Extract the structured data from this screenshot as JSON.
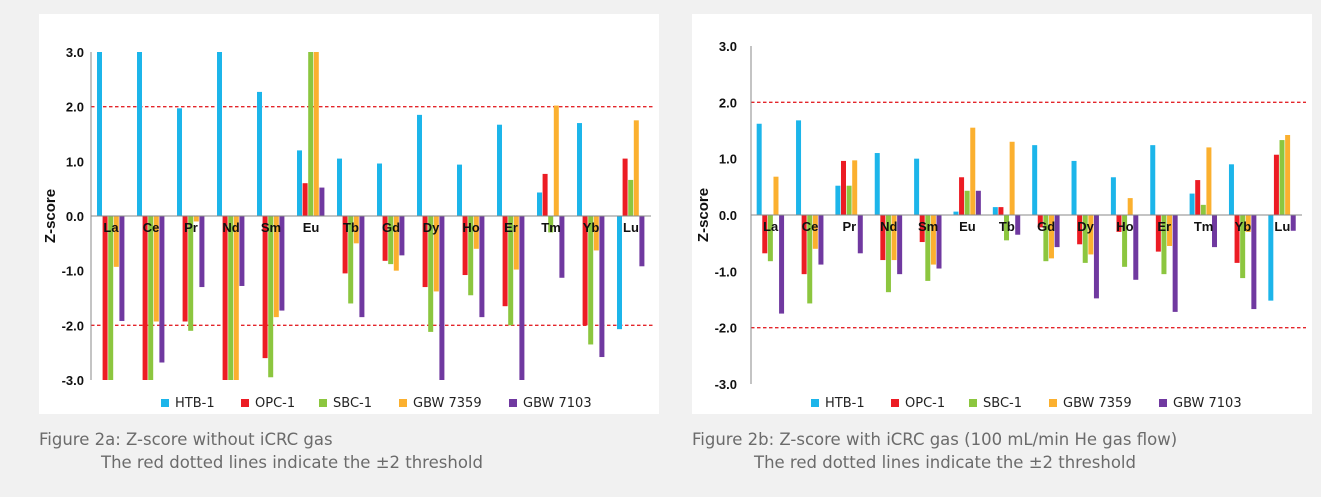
{
  "colors": {
    "HTB-1": "#1cb5ea",
    "OPC-1": "#ec1c24",
    "SBC-1": "#8cc63f",
    "GBW 7359": "#fbb02f",
    "GBW 7103": "#7039a0",
    "threshold": "#e4262b"
  },
  "captions": [
    {
      "line1": "Figure 2a: Z-score without iCRC gas",
      "line2": "The red dotted lines indicate the ±2 threshold"
    },
    {
      "line1": "Figure 2b: Z-score with iCRC gas (100 mL/min He gas flow)",
      "line2": "The red dotted lines indicate the ±2 threshold"
    }
  ],
  "chart_data": [
    {
      "type": "bar",
      "title": "",
      "xlabel": "",
      "ylabel": "Z-score",
      "ylim": [
        -3,
        3
      ],
      "yticks": [
        "3.0",
        "2.0",
        "1.0",
        "0.0",
        "-1.0",
        "-2.0",
        "-3.0"
      ],
      "thresholds": [
        2,
        -2
      ],
      "grid": false,
      "legend_position": "bottom",
      "categories": [
        "La",
        "Ce",
        "Pr",
        "Nd",
        "Sm",
        "Eu",
        "Tb",
        "Gd",
        "Dy",
        "Ho",
        "Er",
        "Tm",
        "Yb",
        "Lu"
      ],
      "series": [
        {
          "name": "HTB-1",
          "values": [
            3.0,
            3.0,
            1.97,
            3.0,
            2.27,
            1.2,
            1.05,
            0.96,
            1.85,
            0.94,
            1.67,
            0.43,
            1.7,
            -2.07
          ]
        },
        {
          "name": "OPC-1",
          "values": [
            -3.0,
            -3.0,
            -1.93,
            -3.0,
            -2.6,
            0.6,
            -1.05,
            -0.82,
            -1.3,
            -1.08,
            -1.65,
            0.77,
            -2.0,
            1.05
          ]
        },
        {
          "name": "SBC-1",
          "values": [
            -3.0,
            -3.0,
            -2.1,
            -3.0,
            -2.95,
            3.0,
            -1.6,
            -0.88,
            -2.12,
            -1.45,
            -2.0,
            -0.3,
            -2.35,
            0.66
          ]
        },
        {
          "name": "GBW 7359",
          "values": [
            -0.93,
            -1.93,
            -0.1,
            -3.0,
            -1.85,
            3.0,
            -0.5,
            -1.0,
            -1.38,
            -0.6,
            -0.98,
            2.02,
            -0.63,
            1.75
          ]
        },
        {
          "name": "GBW 7103",
          "values": [
            -1.92,
            -2.68,
            -1.3,
            -1.28,
            -1.73,
            0.52,
            -1.85,
            -0.72,
            -3.0,
            -1.85,
            -3.0,
            -1.13,
            -2.58,
            -0.92
          ]
        }
      ]
    },
    {
      "type": "bar",
      "title": "",
      "xlabel": "",
      "ylabel": "Z-score",
      "ylim": [
        -3,
        3
      ],
      "yticks": [
        "3.0",
        "2.0",
        "1.0",
        "0.0",
        "-1.0",
        "-2.0",
        "-3.0"
      ],
      "thresholds": [
        2,
        -2
      ],
      "grid": false,
      "legend_position": "bottom",
      "categories": [
        "La",
        "Ce",
        "Pr",
        "Nd",
        "Sm",
        "Eu",
        "Tb",
        "Gd",
        "Dy",
        "Ho",
        "Er",
        "Tm",
        "Yb",
        "Lu"
      ],
      "series": [
        {
          "name": "HTB-1",
          "values": [
            1.62,
            1.68,
            0.52,
            1.1,
            1.0,
            0.06,
            0.14,
            1.24,
            0.96,
            0.67,
            1.24,
            0.38,
            0.9,
            -1.52
          ]
        },
        {
          "name": "OPC-1",
          "values": [
            -0.68,
            -1.05,
            0.96,
            -0.8,
            -0.48,
            0.67,
            0.14,
            -0.22,
            -0.52,
            -0.3,
            -0.65,
            0.62,
            -0.85,
            1.07
          ]
        },
        {
          "name": "SBC-1",
          "values": [
            -0.82,
            -1.57,
            0.52,
            -1.37,
            -1.17,
            0.43,
            -0.45,
            -0.82,
            -0.85,
            -0.92,
            -1.05,
            0.18,
            -1.12,
            1.33
          ]
        },
        {
          "name": "GBW 7359",
          "values": [
            0.68,
            -0.6,
            0.97,
            -0.8,
            -0.88,
            1.55,
            1.3,
            -0.77,
            -0.7,
            0.3,
            -0.55,
            1.2,
            -0.3,
            1.42
          ]
        },
        {
          "name": "GBW 7103",
          "values": [
            -1.75,
            -0.88,
            -0.68,
            -1.05,
            -0.95,
            0.43,
            -0.35,
            -0.57,
            -1.48,
            -1.15,
            -1.72,
            -0.57,
            -1.67,
            -0.28
          ]
        }
      ]
    }
  ]
}
